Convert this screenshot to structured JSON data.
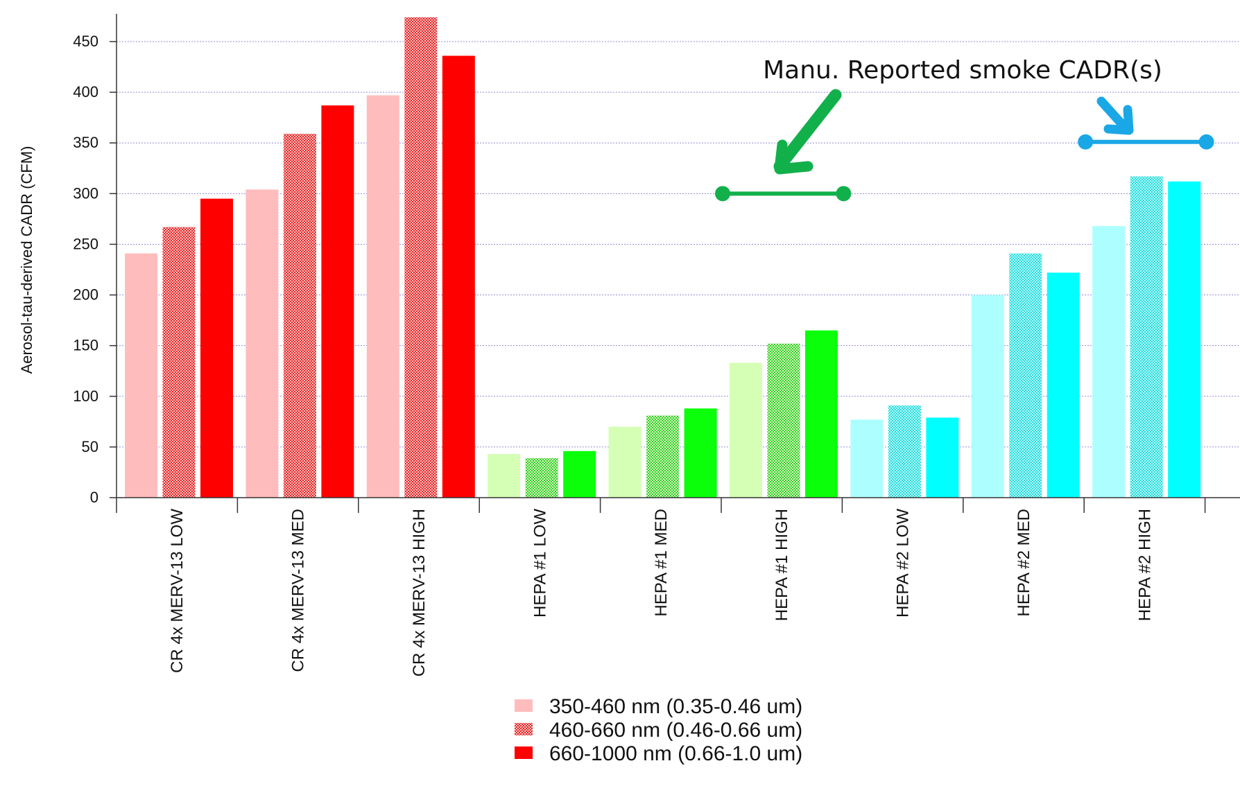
{
  "chart_data": {
    "type": "bar",
    "title": "",
    "xlabel": "",
    "ylabel": "Aerosol-tau-derived CADR (CFM)",
    "ylim": [
      0,
      470
    ],
    "yticks": [
      0,
      50,
      100,
      150,
      200,
      250,
      300,
      350,
      400,
      450
    ],
    "grid": true,
    "legend_position": "bottom-center",
    "categories": [
      "CR 4x MERV-13 LOW",
      "CR 4x MERV-13 MED",
      "CR 4x MERV-13 HIGH",
      "HEPA #1 LOW",
      "HEPA #1 MED",
      "HEPA #1 HIGH",
      "HEPA #2 LOW",
      "HEPA #2 MED",
      "HEPA #2 HIGH"
    ],
    "series": [
      {
        "name": "350-460 nm (0.35-0.46 um)",
        "pattern": "solid-light",
        "values": [
          241,
          304,
          397,
          43,
          70,
          133,
          77,
          200,
          268
        ]
      },
      {
        "name": "460-660 nm (0.46-0.66 um)",
        "pattern": "checkered",
        "values": [
          267,
          359,
          478,
          39,
          81,
          152,
          91,
          241,
          317
        ]
      },
      {
        "name": "660-1000 nm (0.66-1.0 um)",
        "pattern": "solid",
        "values": [
          295,
          387,
          436,
          46,
          88,
          165,
          79,
          222,
          312
        ]
      }
    ],
    "group_colors": {
      "CR 4x MERV-13": {
        "light": "#ffbcbc",
        "pattern": "#e02a2a",
        "solid": "#ff0000"
      },
      "HEPA #1": {
        "light": "#d4ffb4",
        "pattern": "#33c933",
        "solid": "#0bff0b"
      },
      "HEPA #2": {
        "light": "#adffff",
        "pattern": "#32d6d6",
        "solid": "#00ffff"
      }
    },
    "annotations": {
      "text": "Manu. Reported smoke CADR(s)",
      "ranges": [
        {
          "group": "HEPA #1",
          "value": 300,
          "color": "#12b04b"
        },
        {
          "group": "HEPA #2",
          "value": 351,
          "color": "#1aa7e6"
        }
      ]
    }
  }
}
